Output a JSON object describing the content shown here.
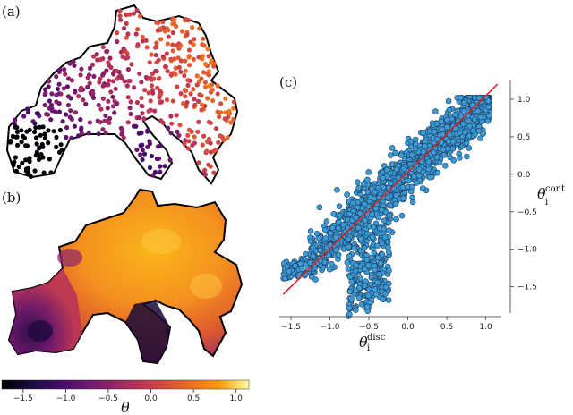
{
  "panels": {
    "a_label": "(a)",
    "b_label": "(b)",
    "c_label": "(c)"
  },
  "colorbar": {
    "ticks": [
      "−1.5",
      "−1.0",
      "−0.5",
      "0.0",
      "0.5",
      "1.0"
    ],
    "tick_values": [
      -1.5,
      -1.0,
      -0.5,
      0.0,
      0.5,
      1.0
    ],
    "range": [
      -1.75,
      1.15
    ],
    "label": "θ",
    "colormap": "inferno"
  },
  "chart_data": {
    "type": "scatter",
    "x_ticks": [
      "−1.5",
      "−1.0",
      "−0.5",
      "0.0",
      "0.5",
      "1.0"
    ],
    "x_tick_values": [
      -1.5,
      -1.0,
      -0.5,
      0.0,
      0.5,
      1.0
    ],
    "y_ticks": [
      "1.0",
      "0.5",
      "0.0",
      "−0.5",
      "−1.0",
      "−1.5"
    ],
    "y_tick_values": [
      1.0,
      0.5,
      0.0,
      -0.5,
      -1.0,
      -1.5
    ],
    "xlabel": "θ",
    "xlabel_sup": "disc",
    "xlabel_sub": "i",
    "ylabel": "θ",
    "ylabel_sup": "cont",
    "ylabel_sub": "i",
    "xlim": [
      -1.65,
      1.2
    ],
    "ylim": [
      -1.85,
      1.25
    ],
    "y_axis_side": "right",
    "point_color": "#3a9bd9",
    "point_edge": "#1f3b57",
    "fit_line": {
      "x": [
        -1.6,
        1.15
      ],
      "y": [
        -1.6,
        1.2
      ],
      "color": "#e02020"
    }
  }
}
